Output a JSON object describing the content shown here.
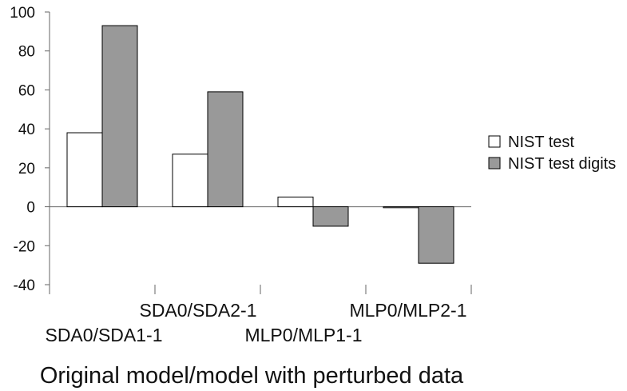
{
  "chart_data": {
    "type": "bar",
    "categories": [
      "SDA0/SDA1-1",
      "SDA0/SDA2-1",
      "MLP0/MLP1-1",
      "MLP0/MLP2-1"
    ],
    "series": [
      {
        "name": "NIST test",
        "values": [
          38,
          27,
          5,
          -0.5
        ],
        "color": "#ffffff"
      },
      {
        "name": "NIST test digits",
        "values": [
          93,
          59,
          -10,
          -29
        ],
        "color": "#999999"
      }
    ],
    "xlabel": "Original model/model with perturbed data",
    "ylabel": "",
    "ylim": [
      -40,
      100
    ],
    "yticks": [
      -40,
      -20,
      0,
      20,
      40,
      60,
      80,
      100
    ],
    "grid": false,
    "legend_position": "right"
  }
}
